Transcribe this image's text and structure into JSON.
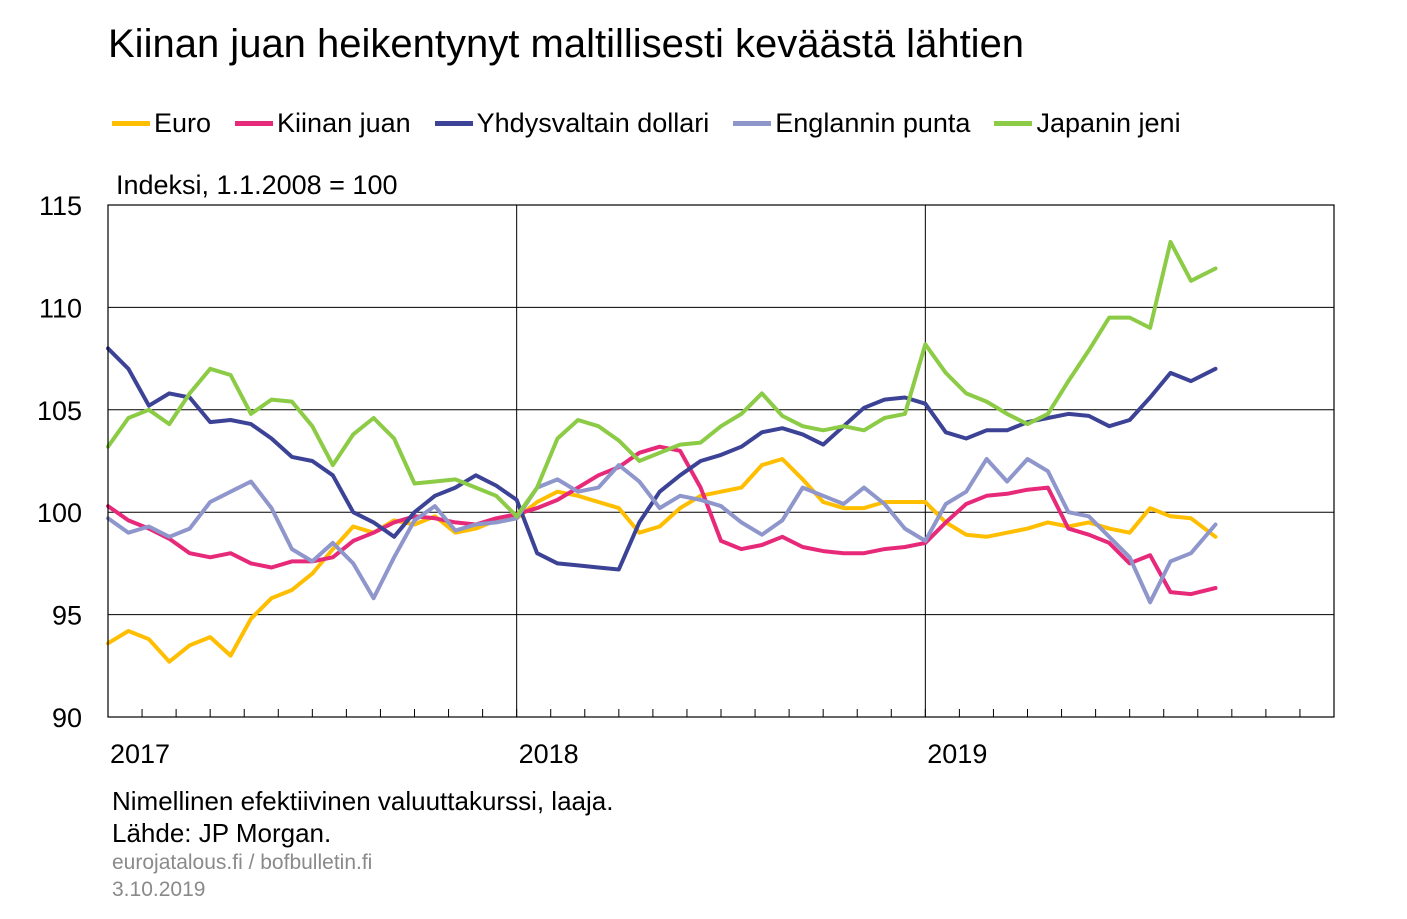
{
  "chart_data": {
    "type": "line",
    "title": "Kiinan juan heikentynyt maltillisesti keväästä lähtien",
    "ylabel": "Indeksi, 1.1.2008 = 100",
    "ylim": [
      90,
      115
    ],
    "yticks": [
      "90",
      "95",
      "100",
      "105",
      "110",
      "115"
    ],
    "xlim": [
      2017.0,
      2020.0
    ],
    "xticks": [
      {
        "label": "2017",
        "x": 2017.0
      },
      {
        "label": "2018",
        "x": 2018.0
      },
      {
        "label": "2019",
        "x": 2019.0
      }
    ],
    "grid": true,
    "legend_position": "top",
    "series": [
      {
        "name": "Euro",
        "color": "#FFBE00",
        "x": [
          2017.0,
          2017.05,
          2017.1,
          2017.15,
          2017.2,
          2017.25,
          2017.3,
          2017.35,
          2017.4,
          2017.45,
          2017.5,
          2017.55,
          2017.6,
          2017.65,
          2017.7,
          2017.75,
          2017.8,
          2017.85,
          2017.9,
          2017.95,
          2018.0,
          2018.05,
          2018.1,
          2018.15,
          2018.2,
          2018.25,
          2018.3,
          2018.35,
          2018.4,
          2018.45,
          2018.5,
          2018.55,
          2018.6,
          2018.65,
          2018.7,
          2018.75,
          2018.8,
          2018.85,
          2018.9,
          2018.95,
          2019.0,
          2019.05,
          2019.1,
          2019.15,
          2019.2,
          2019.25,
          2019.3,
          2019.35,
          2019.4,
          2019.45,
          2019.5,
          2019.55,
          2019.6,
          2019.65,
          2019.71
        ],
        "y": [
          93.6,
          94.2,
          93.8,
          92.7,
          93.5,
          93.9,
          93.0,
          94.8,
          95.8,
          96.2,
          97.0,
          98.2,
          99.3,
          99.0,
          99.6,
          99.4,
          99.8,
          99.0,
          99.2,
          99.6,
          99.7,
          100.5,
          101.0,
          100.8,
          100.5,
          100.2,
          99.0,
          99.3,
          100.2,
          100.8,
          101.0,
          101.2,
          102.3,
          102.6,
          101.6,
          100.5,
          100.2,
          100.2,
          100.5,
          100.5,
          100.5,
          99.5,
          98.9,
          98.8,
          99.0,
          99.2,
          99.5,
          99.3,
          99.5,
          99.2,
          99.0,
          100.2,
          99.8,
          99.7,
          98.8
        ]
      },
      {
        "name": "Kiinan juan",
        "color": "#E7297A",
        "x": [
          2017.0,
          2017.05,
          2017.1,
          2017.15,
          2017.2,
          2017.25,
          2017.3,
          2017.35,
          2017.4,
          2017.45,
          2017.5,
          2017.55,
          2017.6,
          2017.65,
          2017.7,
          2017.75,
          2017.8,
          2017.85,
          2017.9,
          2017.95,
          2018.0,
          2018.05,
          2018.1,
          2018.15,
          2018.2,
          2018.25,
          2018.3,
          2018.35,
          2018.4,
          2018.45,
          2018.5,
          2018.55,
          2018.6,
          2018.65,
          2018.7,
          2018.75,
          2018.8,
          2018.85,
          2018.9,
          2018.95,
          2019.0,
          2019.05,
          2019.1,
          2019.15,
          2019.2,
          2019.25,
          2019.3,
          2019.35,
          2019.4,
          2019.45,
          2019.5,
          2019.55,
          2019.6,
          2019.65,
          2019.71
        ],
        "y": [
          100.3,
          99.6,
          99.2,
          98.7,
          98.0,
          97.8,
          98.0,
          97.5,
          97.3,
          97.6,
          97.6,
          97.8,
          98.6,
          99.0,
          99.5,
          99.8,
          99.7,
          99.5,
          99.4,
          99.7,
          99.9,
          100.2,
          100.6,
          101.2,
          101.8,
          102.2,
          102.9,
          103.2,
          103.0,
          101.2,
          98.6,
          98.2,
          98.4,
          98.8,
          98.3,
          98.1,
          98.0,
          98.0,
          98.2,
          98.3,
          98.5,
          99.5,
          100.4,
          100.8,
          100.9,
          101.1,
          101.2,
          99.2,
          98.9,
          98.5,
          97.5,
          97.9,
          96.1,
          96.0,
          96.3
        ]
      },
      {
        "name": "Yhdysvaltain dollari",
        "color": "#3C4396",
        "x": [
          2017.0,
          2017.05,
          2017.1,
          2017.15,
          2017.2,
          2017.25,
          2017.3,
          2017.35,
          2017.4,
          2017.45,
          2017.5,
          2017.55,
          2017.6,
          2017.65,
          2017.7,
          2017.75,
          2017.8,
          2017.85,
          2017.9,
          2017.95,
          2018.0,
          2018.05,
          2018.1,
          2018.15,
          2018.2,
          2018.25,
          2018.3,
          2018.35,
          2018.4,
          2018.45,
          2018.5,
          2018.55,
          2018.6,
          2018.65,
          2018.7,
          2018.75,
          2018.8,
          2018.85,
          2018.9,
          2018.95,
          2019.0,
          2019.05,
          2019.1,
          2019.15,
          2019.2,
          2019.25,
          2019.3,
          2019.35,
          2019.4,
          2019.45,
          2019.5,
          2019.55,
          2019.6,
          2019.65,
          2019.71
        ],
        "y": [
          108.0,
          107.0,
          105.2,
          105.8,
          105.6,
          104.4,
          104.5,
          104.3,
          103.6,
          102.7,
          102.5,
          101.8,
          100.0,
          99.5,
          98.8,
          100.0,
          100.8,
          101.2,
          101.8,
          101.3,
          100.6,
          98.0,
          97.5,
          97.4,
          97.3,
          97.2,
          99.5,
          101.0,
          101.8,
          102.5,
          102.8,
          103.2,
          103.9,
          104.1,
          103.8,
          103.3,
          104.2,
          105.1,
          105.5,
          105.6,
          105.3,
          103.9,
          103.6,
          104.0,
          104.0,
          104.4,
          104.6,
          104.8,
          104.7,
          104.2,
          104.5,
          105.6,
          106.8,
          106.4,
          107.0
        ]
      },
      {
        "name": "Englannin punta",
        "color": "#8E96CC",
        "x": [
          2017.0,
          2017.05,
          2017.1,
          2017.15,
          2017.2,
          2017.25,
          2017.3,
          2017.35,
          2017.4,
          2017.45,
          2017.5,
          2017.55,
          2017.6,
          2017.65,
          2017.7,
          2017.75,
          2017.8,
          2017.85,
          2017.9,
          2017.95,
          2018.0,
          2018.05,
          2018.1,
          2018.15,
          2018.2,
          2018.25,
          2018.3,
          2018.35,
          2018.4,
          2018.45,
          2018.5,
          2018.55,
          2018.6,
          2018.65,
          2018.7,
          2018.75,
          2018.8,
          2018.85,
          2018.9,
          2018.95,
          2019.0,
          2019.05,
          2019.1,
          2019.15,
          2019.2,
          2019.25,
          2019.3,
          2019.35,
          2019.4,
          2019.45,
          2019.5,
          2019.55,
          2019.6,
          2019.65,
          2019.71
        ],
        "y": [
          99.7,
          99.0,
          99.3,
          98.8,
          99.2,
          100.5,
          101.0,
          101.5,
          100.2,
          98.2,
          97.6,
          98.5,
          97.5,
          95.8,
          97.8,
          99.6,
          100.3,
          99.1,
          99.4,
          99.5,
          99.7,
          101.2,
          101.6,
          101.0,
          101.2,
          102.3,
          101.5,
          100.2,
          100.8,
          100.6,
          100.3,
          99.5,
          98.9,
          99.6,
          101.2,
          100.8,
          100.4,
          101.2,
          100.4,
          99.2,
          98.6,
          100.4,
          101.0,
          102.6,
          101.5,
          102.6,
          102.0,
          100.0,
          99.8,
          98.8,
          97.8,
          95.6,
          97.6,
          98.0,
          99.4
        ]
      },
      {
        "name": "Japanin jeni",
        "color": "#8CCB45",
        "x": [
          2017.0,
          2017.05,
          2017.1,
          2017.15,
          2017.2,
          2017.25,
          2017.3,
          2017.35,
          2017.4,
          2017.45,
          2017.5,
          2017.55,
          2017.6,
          2017.65,
          2017.7,
          2017.75,
          2017.8,
          2017.85,
          2017.9,
          2017.95,
          2018.0,
          2018.05,
          2018.1,
          2018.15,
          2018.2,
          2018.25,
          2018.3,
          2018.35,
          2018.4,
          2018.45,
          2018.5,
          2018.55,
          2018.6,
          2018.65,
          2018.7,
          2018.75,
          2018.8,
          2018.85,
          2018.9,
          2018.95,
          2019.0,
          2019.05,
          2019.1,
          2019.15,
          2019.2,
          2019.25,
          2019.3,
          2019.35,
          2019.4,
          2019.45,
          2019.5,
          2019.55,
          2019.6,
          2019.65,
          2019.71
        ],
        "y": [
          103.2,
          104.6,
          105.0,
          104.3,
          105.8,
          107.0,
          106.7,
          104.8,
          105.5,
          105.4,
          104.2,
          102.3,
          103.8,
          104.6,
          103.6,
          101.4,
          101.5,
          101.6,
          101.2,
          100.8,
          99.8,
          101.2,
          103.6,
          104.5,
          104.2,
          103.5,
          102.5,
          102.9,
          103.3,
          103.4,
          104.2,
          104.8,
          105.8,
          104.7,
          104.2,
          104.0,
          104.2,
          104.0,
          104.6,
          104.8,
          108.2,
          106.8,
          105.8,
          105.4,
          104.8,
          104.3,
          104.8,
          106.4,
          107.9,
          109.5,
          109.5,
          109.0,
          113.2,
          111.3,
          111.9
        ]
      }
    ]
  },
  "footer": {
    "note": "Nimellinen efektiivinen valuuttakurssi, laaja.",
    "source": "Lähde: JP Morgan.",
    "site": "eurojatalous.fi  / bofbulletin.fi",
    "date": "3.10.2019"
  }
}
